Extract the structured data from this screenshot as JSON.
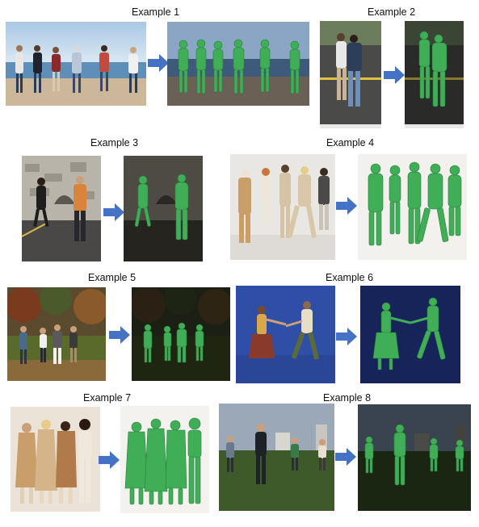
{
  "figure": {
    "examples": [
      {
        "label": "Example 1"
      },
      {
        "label": "Example 2"
      },
      {
        "label": "Example 3"
      },
      {
        "label": "Example 4"
      },
      {
        "label": "Example 5"
      },
      {
        "label": "Example 6"
      },
      {
        "label": "Example 7"
      },
      {
        "label": "Example 8"
      }
    ]
  },
  "colors": {
    "arrow": "#4472c4",
    "mesh": "#3fae57",
    "mesh_shade": "#2a7f3d"
  },
  "icons": {
    "arrow": "right-arrow-icon"
  }
}
